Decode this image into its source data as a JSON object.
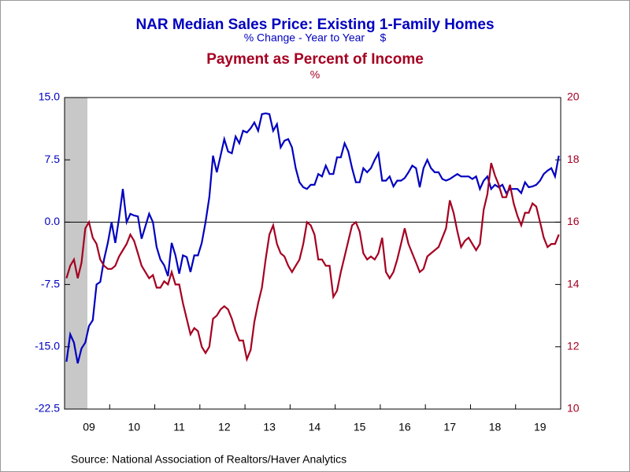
{
  "chart_data": {
    "type": "line",
    "source": "Source:  National Association of Realtors/Haver Analytics",
    "categories": [
      null,
      null,
      null,
      null,
      null,
      null,
      "09",
      null,
      null,
      null,
      null,
      null,
      null,
      null,
      null,
      null,
      null,
      null,
      "10",
      null,
      null,
      null,
      null,
      null,
      null,
      null,
      null,
      null,
      null,
      null,
      "11",
      null,
      null,
      null,
      null,
      null,
      null,
      null,
      null,
      null,
      null,
      null,
      "12",
      null,
      null,
      null,
      null,
      null,
      null,
      null,
      null,
      null,
      null,
      null,
      "13",
      null,
      null,
      null,
      null,
      null,
      null,
      null,
      null,
      null,
      null,
      null,
      "14",
      null,
      null,
      null,
      null,
      null,
      null,
      null,
      null,
      null,
      null,
      null,
      "15",
      null,
      null,
      null,
      null,
      null,
      null,
      null,
      null,
      null,
      null,
      null,
      "16",
      null,
      null,
      null,
      null,
      null,
      null,
      null,
      null,
      null,
      null,
      null,
      "17",
      null,
      null,
      null,
      null,
      null,
      null,
      null,
      null,
      null,
      null,
      null,
      "18",
      null,
      null,
      null,
      null,
      null,
      null,
      null,
      null,
      null,
      null,
      null,
      "19",
      null,
      null,
      null,
      null,
      null
    ],
    "ylim": [
      -22.5,
      15
    ],
    "yticks": [
      {
        "value": -22.5,
        "label": "-22.5"
      },
      {
        "value": -15,
        "label": "-15.0"
      },
      {
        "value": -7.5,
        "label": "-7.5"
      },
      {
        "value": 0,
        "label": "0.0"
      },
      {
        "value": 7.5,
        "label": "7.5"
      },
      {
        "value": 15,
        "label": "15.0"
      }
    ],
    "y2lim": [
      10,
      20
    ],
    "y2ticks": [
      10,
      12,
      14,
      16,
      18,
      20
    ],
    "series": [
      {
        "name": "NAR Median Sales Price: Existing 1-Family Homes",
        "unit_label": "% Change - Year to Year     $",
        "color": "#0000c0",
        "axis": "y",
        "values": [
          -16.8,
          -13.5,
          -14.5,
          -17,
          -15.2,
          -14.5,
          -12.5,
          -11.8,
          -7.5,
          -7.2,
          -4.5,
          -2.5,
          0,
          -2.5,
          0.5,
          4,
          0,
          1,
          0.8,
          0.7,
          -2,
          -0.5,
          1,
          0,
          -3,
          -4.5,
          -5.2,
          -6.5,
          -2.5,
          -4,
          -6.2,
          -4,
          -4.2,
          -6,
          -4,
          -4,
          -2.5,
          0,
          3,
          8,
          6,
          8,
          10,
          8.5,
          8.3,
          10.3,
          9.5,
          11,
          10.8,
          11.3,
          12,
          11,
          13,
          13.1,
          13,
          11,
          11.8,
          9,
          9.8,
          10,
          9,
          6.5,
          4.8,
          4.2,
          4,
          4.5,
          4.5,
          5.8,
          5.5,
          6.8,
          5.8,
          5.8,
          7.8,
          7.8,
          9.5,
          8.5,
          6.5,
          4.8,
          4.8,
          6.5,
          6,
          6.5,
          7.5,
          8.3,
          5,
          5,
          5.5,
          4.3,
          5,
          5,
          5.3,
          6,
          6.8,
          6.5,
          4.2,
          6.5,
          7.5,
          6.5,
          6,
          6,
          5.2,
          5,
          5.2,
          5.5,
          5.8,
          5.5,
          5.5,
          5.5,
          5.2,
          5.5,
          4,
          5,
          5.5,
          4,
          4.5,
          4.2,
          4.5,
          3.5,
          4,
          4,
          4,
          3.5,
          4.8,
          4.2,
          4.3,
          4.5,
          5,
          5.8,
          6.2,
          6.5,
          5.5,
          8
        ]
      },
      {
        "name": "Payment as Percent of Income",
        "unit_label": "%",
        "color": "#a50021",
        "axis": "y2",
        "values": [
          14.2,
          14.6,
          14.8,
          14.2,
          14.7,
          15.8,
          16.0,
          15.5,
          15.3,
          14.8,
          14.6,
          14.5,
          14.5,
          14.6,
          14.9,
          15.1,
          15.3,
          15.6,
          15.4,
          15.0,
          14.6,
          14.4,
          14.2,
          14.3,
          13.9,
          13.9,
          14.1,
          14.0,
          14.4,
          14.0,
          14.0,
          13.4,
          12.9,
          12.4,
          12.6,
          12.5,
          12.0,
          11.8,
          12.0,
          12.9,
          13.0,
          13.2,
          13.3,
          13.2,
          12.9,
          12.5,
          12.2,
          12.2,
          11.6,
          11.9,
          12.8,
          13.4,
          13.9,
          14.8,
          15.6,
          15.9,
          15.3,
          15.0,
          14.9,
          14.6,
          14.4,
          14.6,
          14.8,
          15.3,
          16.0,
          15.9,
          15.6,
          14.8,
          14.8,
          14.6,
          14.6,
          13.6,
          13.8,
          14.4,
          14.9,
          15.4,
          15.9,
          16.0,
          15.7,
          15.0,
          14.8,
          14.9,
          14.8,
          15.0,
          15.5,
          14.4,
          14.2,
          14.4,
          14.8,
          15.3,
          15.8,
          15.3,
          15.0,
          14.7,
          14.4,
          14.5,
          14.9,
          15.0,
          15.1,
          15.2,
          15.5,
          15.8,
          16.7,
          16.3,
          15.7,
          15.2,
          15.4,
          15.5,
          15.3,
          15.1,
          15.3,
          16.4,
          16.9,
          17.9,
          17.5,
          17.2,
          16.8,
          16.8,
          17.2,
          16.6,
          16.2,
          15.9,
          16.3,
          16.3,
          16.6,
          16.5,
          16.0,
          15.5,
          15.2,
          15.3,
          15.3,
          15.6
        ]
      }
    ]
  }
}
